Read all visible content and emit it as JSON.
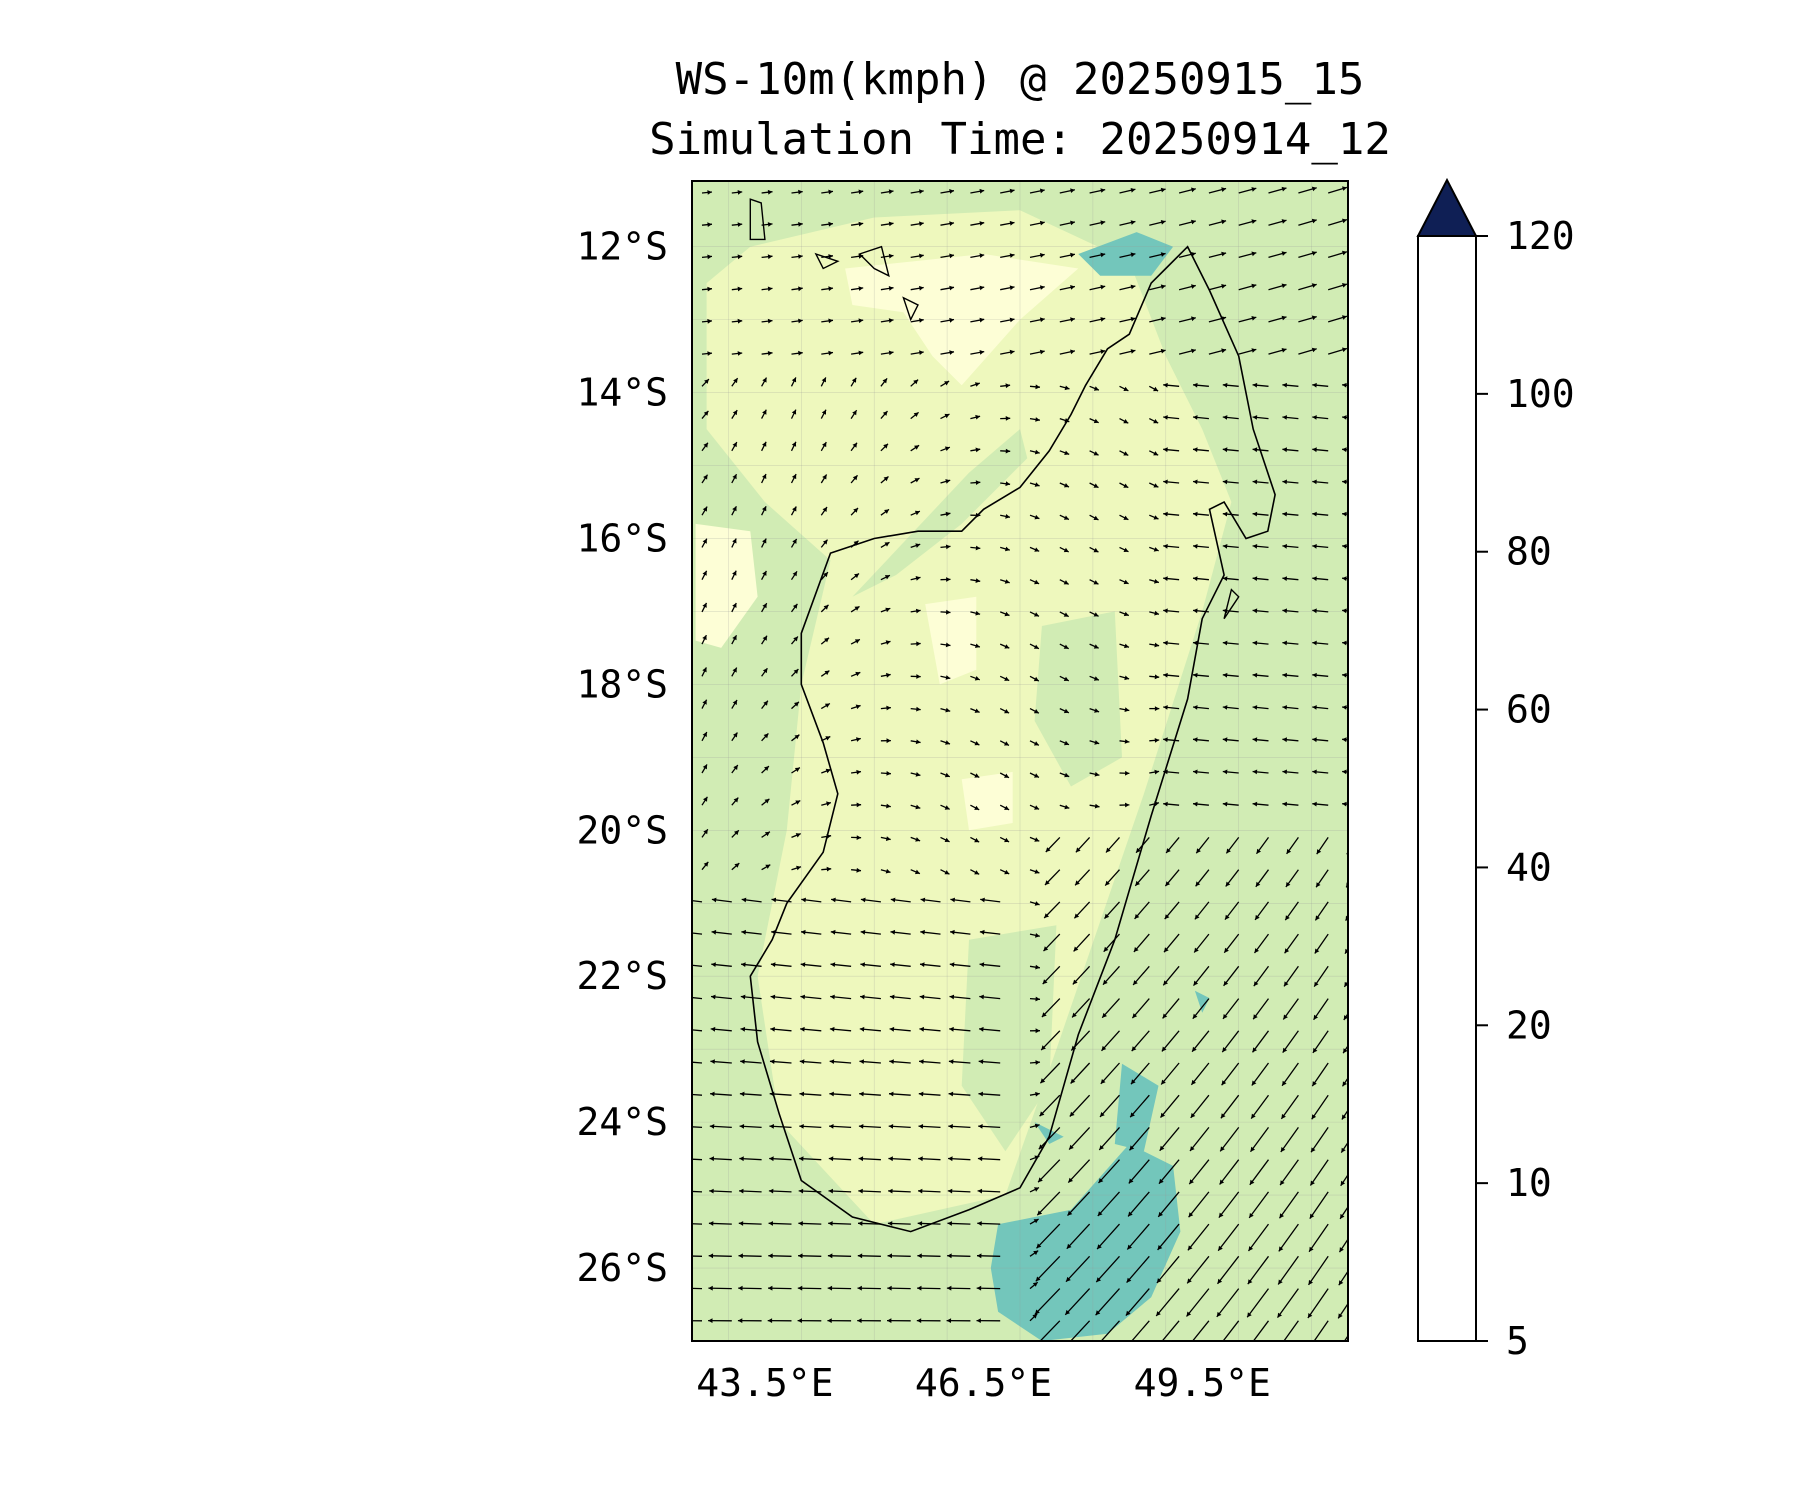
{
  "title": {
    "line1": "WS-10m(kmph) @ 20250915_15",
    "line2": "Simulation Time: 20250914_12"
  },
  "map": {
    "region": "Madagascar",
    "lon_range": [
      42.5,
      51.5
    ],
    "lat_range": [
      -27,
      -11.1
    ],
    "lat_ticks": [
      {
        "value": -12,
        "label": "12°S"
      },
      {
        "value": -14,
        "label": "14°S"
      },
      {
        "value": -16,
        "label": "16°S"
      },
      {
        "value": -18,
        "label": "18°S"
      },
      {
        "value": -20,
        "label": "20°S"
      },
      {
        "value": -22,
        "label": "22°S"
      },
      {
        "value": -24,
        "label": "24°S"
      },
      {
        "value": -26,
        "label": "26°S"
      }
    ],
    "lon_ticks": [
      {
        "value": 43.5,
        "label": "43.5°E"
      },
      {
        "value": 46.5,
        "label": "46.5°E"
      },
      {
        "value": 49.5,
        "label": "49.5°E"
      }
    ],
    "background_bin_color": "#d1ecb4",
    "zones": [
      {
        "bin": "10-20",
        "color": "#eef8bd",
        "polygon": [
          [
            43.3,
            -12
          ],
          [
            45,
            -11.6
          ],
          [
            47,
            -11.5
          ],
          [
            48.5,
            -12.2
          ],
          [
            49,
            -13.5
          ],
          [
            49.5,
            -14.5
          ],
          [
            49.9,
            -15.5
          ],
          [
            49.5,
            -17
          ],
          [
            48.7,
            -19.5
          ],
          [
            47.5,
            -23
          ],
          [
            46.8,
            -25
          ],
          [
            45,
            -25.4
          ],
          [
            43.7,
            -24
          ],
          [
            43.4,
            -22
          ],
          [
            43.8,
            -20
          ],
          [
            44,
            -18
          ],
          [
            44.4,
            -16.3
          ],
          [
            43.5,
            -15.5
          ],
          [
            42.7,
            -14.5
          ],
          [
            42.7,
            -12.5
          ]
        ]
      },
      {
        "bin": "5-10",
        "color": "#fdfed6",
        "polygon": [
          [
            42.55,
            -15.8
          ],
          [
            43.3,
            -15.9
          ],
          [
            43.4,
            -16.8
          ],
          [
            42.9,
            -17.5
          ],
          [
            42.55,
            -17.4
          ]
        ]
      },
      {
        "bin": "5-10",
        "color": "#fdfed6",
        "polygon": [
          [
            44.6,
            -12.3
          ],
          [
            46.5,
            -12.1
          ],
          [
            47.8,
            -12.3
          ],
          [
            47,
            -13
          ],
          [
            46.2,
            -13.9
          ],
          [
            45.8,
            -13.5
          ],
          [
            45.4,
            -12.9
          ],
          [
            44.7,
            -12.8
          ]
        ]
      },
      {
        "bin": "5-10",
        "color": "#fdfed6",
        "polygon": [
          [
            45.7,
            -16.9
          ],
          [
            46.4,
            -16.8
          ],
          [
            46.4,
            -17.8
          ],
          [
            45.9,
            -18
          ]
        ]
      },
      {
        "bin": "5-10",
        "color": "#fdfed6",
        "polygon": [
          [
            46.2,
            -19.3
          ],
          [
            46.9,
            -19.2
          ],
          [
            46.9,
            -19.9
          ],
          [
            46.3,
            -20
          ]
        ]
      },
      {
        "bin": "20-40",
        "color": "#d1ecb4",
        "polygon": [
          [
            47.3,
            -17.2
          ],
          [
            48.3,
            -17
          ],
          [
            48.4,
            -19
          ],
          [
            47.7,
            -19.4
          ],
          [
            47.2,
            -18.5
          ]
        ]
      },
      {
        "bin": "20-40",
        "color": "#d1ecb4",
        "polygon": [
          [
            46.3,
            -21.5
          ],
          [
            47.5,
            -21.3
          ],
          [
            47.4,
            -23.5
          ],
          [
            46.8,
            -24.4
          ],
          [
            46.2,
            -23.5
          ]
        ]
      },
      {
        "bin": "20-40",
        "color": "#d1ecb4",
        "polygon": [
          [
            44.7,
            -16.8
          ],
          [
            46.3,
            -15.1
          ],
          [
            47,
            -14.5
          ],
          [
            47.1,
            -14.9
          ],
          [
            46.2,
            -15.8
          ],
          [
            45.3,
            -16.5
          ]
        ]
      },
      {
        "bin": "40-60",
        "color": "#73c6bb",
        "polygon": [
          [
            47.8,
            -12.1
          ],
          [
            48.6,
            -11.8
          ],
          [
            49.1,
            -12.0
          ],
          [
            48.8,
            -12.4
          ],
          [
            48.1,
            -12.4
          ]
        ]
      },
      {
        "bin": "40-60",
        "color": "#73c6bb",
        "polygon": [
          [
            48.4,
            -23.2
          ],
          [
            48.9,
            -23.5
          ],
          [
            48.7,
            -24.4
          ],
          [
            48.3,
            -24.3
          ]
        ]
      },
      {
        "bin": "40-60",
        "color": "#73c6bb",
        "polygon": [
          [
            46.7,
            -25.4
          ],
          [
            47.7,
            -25.2
          ],
          [
            48.5,
            -24.3
          ],
          [
            49.1,
            -24.6
          ],
          [
            49.2,
            -25.5
          ],
          [
            48.8,
            -26.4
          ],
          [
            48.2,
            -26.9
          ],
          [
            47.3,
            -27.0
          ],
          [
            46.7,
            -26.6
          ],
          [
            46.6,
            -26
          ]
        ]
      },
      {
        "bin": "40-60",
        "color": "#73c6bb",
        "polygon": [
          [
            49.4,
            -22.2
          ],
          [
            49.6,
            -22.3
          ],
          [
            49.5,
            -22.5
          ]
        ]
      },
      {
        "bin": "40-60",
        "color": "#73c6bb",
        "polygon": [
          [
            47.2,
            -24.0
          ],
          [
            47.6,
            -24.2
          ],
          [
            47.4,
            -24.3
          ]
        ]
      }
    ],
    "coastline": [
      [
        49.3,
        -12.0
      ],
      [
        49.6,
        -12.6
      ],
      [
        50.0,
        -13.5
      ],
      [
        50.2,
        -14.5
      ],
      [
        50.5,
        -15.4
      ],
      [
        50.4,
        -15.9
      ],
      [
        50.1,
        -16.0
      ],
      [
        49.8,
        -15.5
      ],
      [
        49.6,
        -15.6
      ],
      [
        49.8,
        -16.5
      ],
      [
        49.5,
        -17.1
      ],
      [
        49.3,
        -18.2
      ],
      [
        48.8,
        -19.8
      ],
      [
        48.3,
        -21.5
      ],
      [
        47.8,
        -22.8
      ],
      [
        47.4,
        -24.2
      ],
      [
        47.0,
        -24.9
      ],
      [
        46.3,
        -25.2
      ],
      [
        45.5,
        -25.5
      ],
      [
        44.7,
        -25.3
      ],
      [
        44.0,
        -24.8
      ],
      [
        43.7,
        -23.9
      ],
      [
        43.4,
        -22.9
      ],
      [
        43.3,
        -22.0
      ],
      [
        43.6,
        -21.5
      ],
      [
        43.8,
        -21.0
      ],
      [
        44.3,
        -20.3
      ],
      [
        44.5,
        -19.5
      ],
      [
        44.3,
        -18.8
      ],
      [
        44.0,
        -18.0
      ],
      [
        44.0,
        -17.3
      ],
      [
        44.4,
        -16.2
      ],
      [
        45.0,
        -16.0
      ],
      [
        45.6,
        -15.9
      ],
      [
        46.2,
        -15.9
      ],
      [
        46.5,
        -15.6
      ],
      [
        47.0,
        -15.3
      ],
      [
        47.4,
        -14.8
      ],
      [
        47.7,
        -14.3
      ],
      [
        47.9,
        -13.9
      ],
      [
        48.2,
        -13.4
      ],
      [
        48.5,
        -13.2
      ],
      [
        48.8,
        -12.5
      ],
      [
        49.0,
        -12.3
      ],
      [
        49.3,
        -12.0
      ]
    ],
    "islands": [
      [
        [
          43.3,
          -11.35
        ],
        [
          43.45,
          -11.4
        ],
        [
          43.5,
          -11.9
        ],
        [
          43.3,
          -11.9
        ]
      ],
      [
        [
          44.2,
          -12.1
        ],
        [
          44.5,
          -12.2
        ],
        [
          44.3,
          -12.3
        ]
      ],
      [
        [
          44.8,
          -12.1
        ],
        [
          45.1,
          -12.0
        ],
        [
          45.2,
          -12.4
        ],
        [
          45.0,
          -12.3
        ]
      ],
      [
        [
          45.4,
          -12.7
        ],
        [
          45.6,
          -12.8
        ],
        [
          45.5,
          -13.0
        ]
      ],
      [
        [
          49.9,
          -16.7
        ],
        [
          50.0,
          -16.8
        ],
        [
          49.8,
          -17.1
        ]
      ]
    ]
  },
  "colorbar": {
    "levels": [
      5,
      10,
      20,
      40,
      60,
      80,
      100,
      120
    ],
    "labels": [
      "5",
      "10",
      "20",
      "40",
      "60",
      "80",
      "100",
      "120"
    ],
    "colors": [
      "#fdfed6",
      "#eef8bd",
      "#d1ecb4",
      "#73c6bb",
      "#2fa3c5",
      "#2167ac",
      "#1f2e7f"
    ],
    "extend_color": "#0f1f55",
    "extend": "max"
  }
}
